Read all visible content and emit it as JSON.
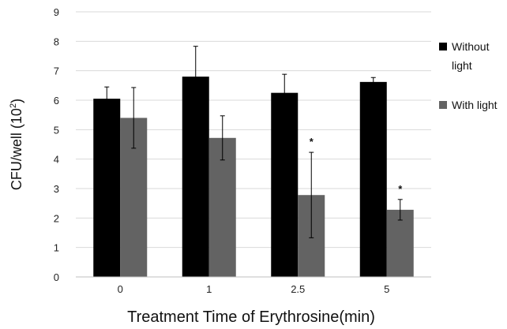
{
  "chart_data": {
    "type": "bar",
    "categories": [
      "0",
      "1",
      "2.5",
      "5"
    ],
    "series": [
      {
        "name": "Without light",
        "legend_lines": [
          "Without",
          "light"
        ],
        "color": "#000000",
        "values": [
          6.05,
          6.8,
          6.25,
          6.62
        ],
        "errors": [
          0.4,
          1.03,
          0.63,
          0.15
        ]
      },
      {
        "name": "With light",
        "legend_lines": [
          "With light"
        ],
        "color": "#636363",
        "values": [
          5.4,
          4.72,
          2.78,
          2.28
        ],
        "errors": [
          1.03,
          0.75,
          1.45,
          0.35
        ]
      }
    ],
    "significance": [
      {
        "category": "2.5",
        "series": "With light",
        "mark": "*"
      },
      {
        "category": "5",
        "series": "With light",
        "mark": "*"
      }
    ],
    "xlabel": "Treatment Time of Erythrosine(min)",
    "ylabel": {
      "text": "CFU/well (10",
      "sup": "2",
      "close": ")"
    },
    "ylim": [
      0,
      9
    ],
    "yticks": [
      "0",
      "1",
      "2",
      "3",
      "4",
      "5",
      "6",
      "7",
      "8",
      "9"
    ],
    "grid": true,
    "grid_color": "#d9d9d9",
    "legend_position": "right"
  }
}
